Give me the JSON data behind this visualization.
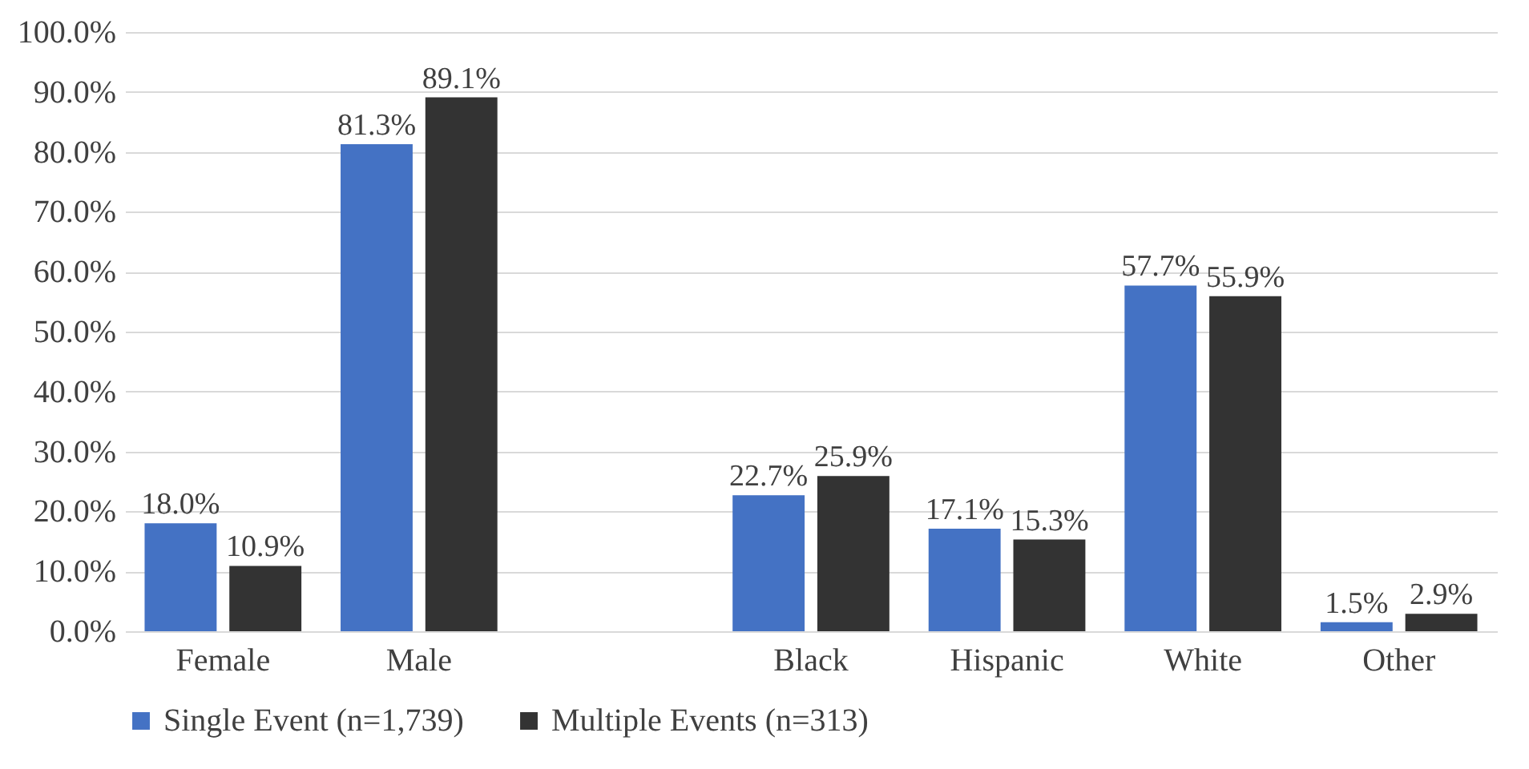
{
  "chart_data": {
    "type": "bar",
    "categories": [
      "Female",
      "Male",
      null,
      "Black",
      "Hispanic",
      "White",
      "Other"
    ],
    "series": [
      {
        "name": "Single Event (n=1,739)",
        "color": "#4472c4",
        "values": [
          18.0,
          81.3,
          null,
          22.7,
          17.1,
          57.7,
          1.5
        ],
        "value_labels": [
          "18.0%",
          "81.3%",
          null,
          "22.7%",
          "17.1%",
          "57.7%",
          "1.5%"
        ]
      },
      {
        "name": "Multiple Events (n=313)",
        "color": "#333333",
        "values": [
          10.9,
          89.1,
          null,
          25.9,
          15.3,
          55.9,
          2.9
        ],
        "value_labels": [
          "10.9%",
          "89.1%",
          null,
          "25.9%",
          "15.3%",
          "55.9%",
          "2.9%"
        ]
      }
    ],
    "ylim": [
      0,
      100
    ],
    "yticks": [
      {
        "value": 0,
        "label": "0.0%"
      },
      {
        "value": 10,
        "label": "10.0%"
      },
      {
        "value": 20,
        "label": "20.0%"
      },
      {
        "value": 30,
        "label": "30.0%"
      },
      {
        "value": 40,
        "label": "40.0%"
      },
      {
        "value": 50,
        "label": "50.0%"
      },
      {
        "value": 60,
        "label": "60.0%"
      },
      {
        "value": 70,
        "label": "70.0%"
      },
      {
        "value": 80,
        "label": "80.0%"
      },
      {
        "value": 90,
        "label": "90.0%"
      },
      {
        "value": 100,
        "label": "100.0%"
      }
    ],
    "grid": "y",
    "legend": "bottom"
  }
}
